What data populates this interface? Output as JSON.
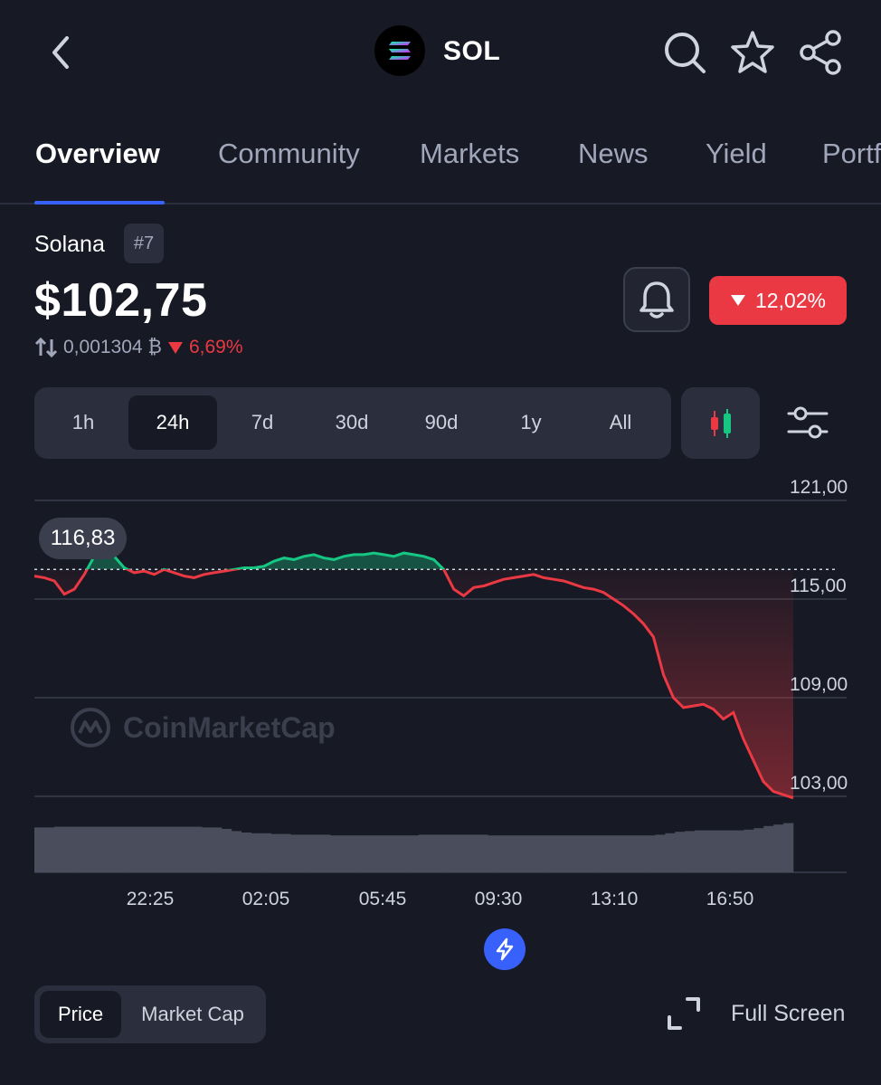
{
  "header": {
    "back_icon": "chevron-left-icon",
    "coin_icon": "solana-logo",
    "symbol": "SOL",
    "icons": [
      "search-icon",
      "star-icon",
      "share-icon"
    ]
  },
  "tabs": [
    {
      "label": "Overview",
      "active": true
    },
    {
      "label": "Community",
      "active": false
    },
    {
      "label": "Markets",
      "active": false
    },
    {
      "label": "News",
      "active": false
    },
    {
      "label": "Yield",
      "active": false
    },
    {
      "label": "Portf",
      "active": false
    }
  ],
  "coin": {
    "name": "Solana",
    "rank": "#7",
    "price": "$102,75",
    "btc_price": "0,001304 ₿",
    "btc_change": "6,69%",
    "change_24h": "12,02%"
  },
  "ranges": {
    "options": [
      "1h",
      "24h",
      "7d",
      "30d",
      "90d",
      "1y",
      "All"
    ],
    "selected": "24h"
  },
  "chart_data": {
    "type": "line",
    "y_ticks": [
      "121,00",
      "115,00",
      "109,00",
      "103,00"
    ],
    "ylim": [
      102,
      121
    ],
    "x_ticks": [
      "22:25",
      "02:05",
      "05:45",
      "09:30",
      "13:10",
      "16:50"
    ],
    "high_label": "116,83",
    "reference_value": 116.8,
    "watermark": "CoinMarketCap",
    "colors": {
      "up": "#16c784",
      "down": "#ea3943",
      "grid": "#3a3e4d"
    },
    "series": [
      {
        "values": [
          116.4,
          116.3,
          116.1,
          115.3,
          115.6,
          116.5,
          117.6,
          118.0,
          117.6,
          116.9,
          116.6,
          116.7,
          116.5,
          116.8,
          116.6,
          116.4,
          116.3,
          116.5,
          116.6,
          116.7,
          116.8,
          116.9,
          116.9,
          117.0,
          117.3,
          117.5,
          117.4,
          117.6,
          117.7,
          117.5,
          117.4,
          117.6,
          117.7,
          117.7,
          117.8,
          117.7,
          117.6,
          117.8,
          117.7,
          117.6,
          117.4,
          116.8,
          115.6,
          115.2,
          115.7,
          115.8,
          116.0,
          116.2,
          116.3,
          116.4,
          116.5,
          116.3,
          116.2,
          116.1,
          115.9,
          115.7,
          115.6,
          115.4,
          115.0,
          114.6,
          114.1,
          113.5,
          112.7,
          110.4,
          109.0,
          108.4,
          108.5,
          108.6,
          108.3,
          107.7,
          108.1,
          106.5,
          105.2,
          103.9,
          103.3,
          103.1,
          102.9
        ]
      }
    ],
    "volume": [
      0.62,
      0.62,
      0.63,
      0.63,
      0.63,
      0.63,
      0.63,
      0.63,
      0.63,
      0.63,
      0.63,
      0.63,
      0.63,
      0.63,
      0.63,
      0.63,
      0.63,
      0.62,
      0.62,
      0.6,
      0.57,
      0.55,
      0.54,
      0.54,
      0.53,
      0.53,
      0.52,
      0.52,
      0.52,
      0.52,
      0.51,
      0.51,
      0.51,
      0.51,
      0.51,
      0.51,
      0.51,
      0.51,
      0.51,
      0.52,
      0.52,
      0.52,
      0.52,
      0.52,
      0.52,
      0.52,
      0.51,
      0.51,
      0.51,
      0.51,
      0.51,
      0.51,
      0.51,
      0.51,
      0.51,
      0.51,
      0.51,
      0.51,
      0.51,
      0.51,
      0.51,
      0.51,
      0.51,
      0.52,
      0.54,
      0.56,
      0.57,
      0.58,
      0.58,
      0.58,
      0.58,
      0.58,
      0.59,
      0.61,
      0.64,
      0.66,
      0.68
    ]
  },
  "bottom": {
    "toggle": [
      "Price",
      "Market Cap"
    ],
    "selected": "Price",
    "fullscreen_label": "Full Screen"
  }
}
